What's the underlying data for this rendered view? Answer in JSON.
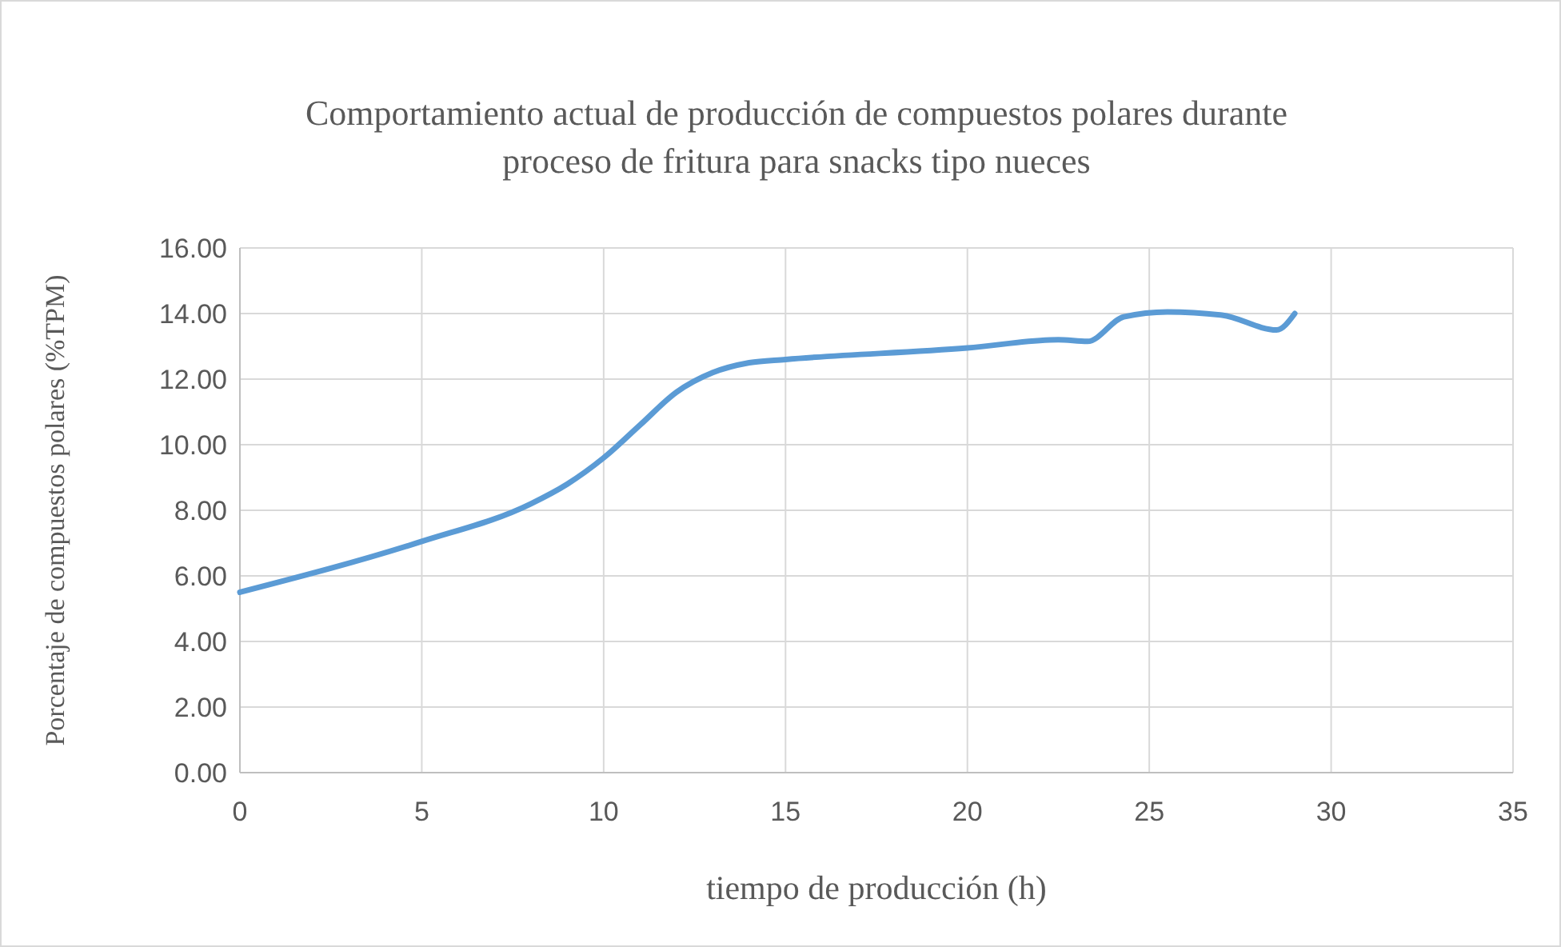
{
  "chart_data": {
    "type": "line",
    "title": "Comportamiento actual de producción de compuestos polares durante\nproceso de fritura para snacks tipo nueces",
    "xlabel": "tiempo de producción (h)",
    "ylabel": "Porcentaje de compuestos polares (%TPM)",
    "xlim": [
      0,
      35
    ],
    "xticks": [
      0,
      5,
      10,
      15,
      20,
      25,
      30,
      35
    ],
    "ylim": [
      0,
      16
    ],
    "yticks": [
      {
        "value": 0,
        "label": "0.00"
      },
      {
        "value": 2,
        "label": "2.00"
      },
      {
        "value": 4,
        "label": "4.00"
      },
      {
        "value": 6,
        "label": "6.00"
      },
      {
        "value": 8,
        "label": "8.00"
      },
      {
        "value": 10,
        "label": "10.00"
      },
      {
        "value": 12,
        "label": "12.00"
      },
      {
        "value": 14,
        "label": "14.00"
      },
      {
        "value": 16,
        "label": "16.00"
      }
    ],
    "grid": true,
    "marker": "none",
    "line_style": "solid",
    "series": [
      {
        "color": "#5b9bd5",
        "x": [
          0,
          5,
          8,
          9,
          10,
          11,
          12,
          13,
          14,
          15,
          20,
          22.5,
          23.3,
          24.3,
          25.5,
          27,
          28.5,
          29
        ],
        "values": [
          5.5,
          7.05,
          8.2,
          8.8,
          9.6,
          10.6,
          11.6,
          12.2,
          12.5,
          12.6,
          12.95,
          13.2,
          13.15,
          13.9,
          14.05,
          13.95,
          13.5,
          14.0
        ]
      }
    ]
  }
}
